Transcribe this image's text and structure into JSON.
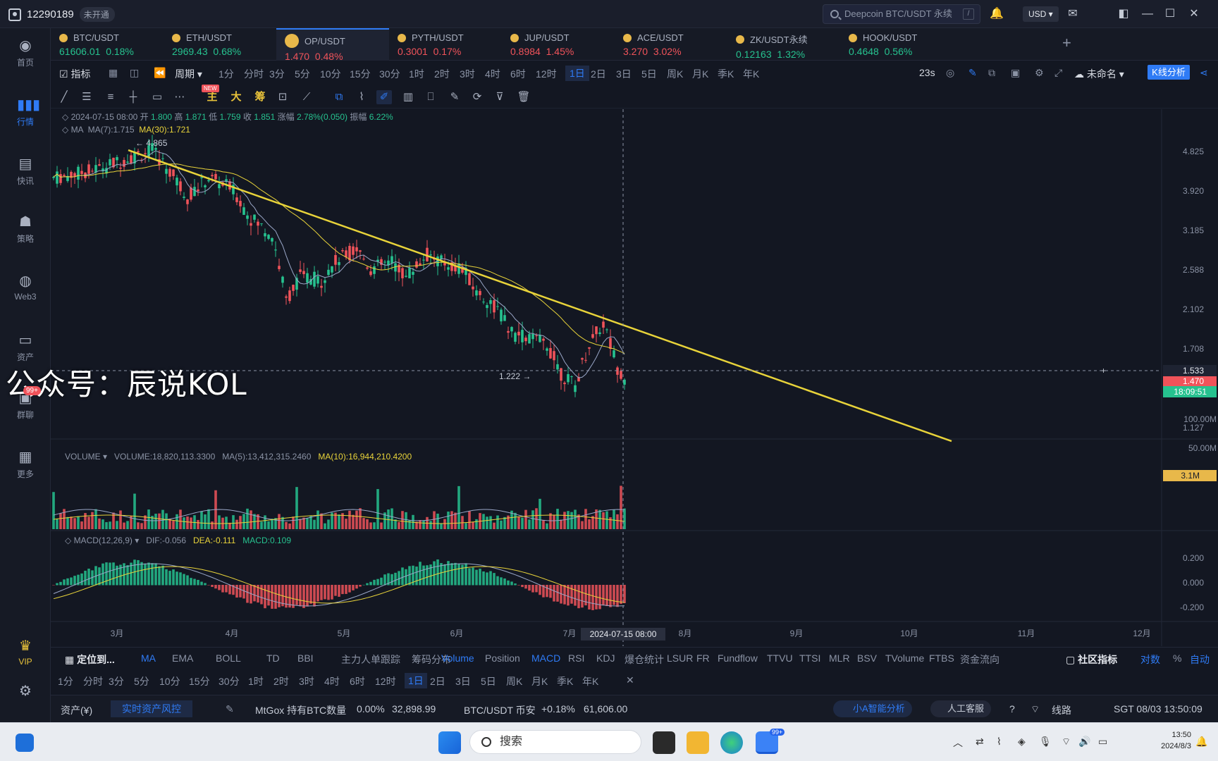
{
  "titlebar": {
    "account_id": "12290189",
    "account_status": "未开通",
    "search_placeholder": "Deepcoin BTC/USDT 永续",
    "search_shortcut": "/",
    "currency": "USD"
  },
  "sidebar": {
    "items": [
      {
        "label": "首页",
        "icon": "home-icon"
      },
      {
        "label": "行情",
        "icon": "market-icon"
      },
      {
        "label": "快讯",
        "icon": "news-icon"
      },
      {
        "label": "策略",
        "icon": "bot-icon"
      },
      {
        "label": "Web3",
        "icon": "web3-icon"
      },
      {
        "label": "资产",
        "icon": "wallet-icon"
      },
      {
        "label": "群聊",
        "icon": "chat-icon"
      },
      {
        "label": "更多",
        "icon": "more-icon"
      },
      {
        "label": "VIP",
        "icon": "vip-icon"
      }
    ],
    "chat_badge": "99+"
  },
  "tickers": [
    {
      "name": "BTC/USDT",
      "price": "61606.01",
      "change": "0.18%",
      "dir": "up"
    },
    {
      "name": "ETH/USDT",
      "price": "2969.43",
      "change": "0.68%",
      "dir": "up"
    },
    {
      "name": "OP/USDT",
      "price": "1.470",
      "change": "0.48%",
      "dir": "dn",
      "active": true
    },
    {
      "name": "PYTH/USDT",
      "price": "0.3001",
      "change": "0.17%",
      "dir": "dn"
    },
    {
      "name": "JUP/USDT",
      "price": "0.8984",
      "change": "1.45%",
      "dir": "dn"
    },
    {
      "name": "ACE/USDT",
      "price": "3.270",
      "change": "3.02%",
      "dir": "dn"
    },
    {
      "name": "ZK/USDT永续",
      "price": "0.12163",
      "change": "1.32%",
      "dir": "up"
    },
    {
      "name": "HOOK/USDT",
      "price": "0.4648",
      "change": "0.56%",
      "dir": "up"
    }
  ],
  "periodbar": {
    "indicator_label": "指标",
    "period_label": "周期",
    "periods": [
      "1分",
      "分时",
      "3分",
      "5分",
      "10分",
      "15分",
      "30分",
      "1时",
      "2时",
      "3时",
      "4时",
      "6时",
      "12时",
      "1日",
      "2日",
      "3日",
      "5日",
      "周K",
      "月K",
      "季K",
      "年K"
    ],
    "selected": "1日",
    "countdown": "23s",
    "layout_name": "未命名",
    "kline_button": "K线分析"
  },
  "drawbar": {
    "new_badge": "NEW",
    "tools_text": [
      "主",
      "大",
      "筹"
    ]
  },
  "chart_header": {
    "date": "2024-07-15 08:00",
    "open_label": "开",
    "open": "1.800",
    "high_label": "高",
    "high": "1.871",
    "low_label": "低",
    "low": "1.759",
    "close_label": "收",
    "close": "1.851",
    "change_label": "涨幅",
    "change": "2.78%(0.050)",
    "amp_label": "振幅",
    "amp": "6.22%",
    "ma_name": "MA",
    "ma7": "MA(7):1.715",
    "ma30": "MA(30):1.721"
  },
  "price_axis": {
    "ticks": [
      "4.825",
      "3.920",
      "3.185",
      "2.588",
      "2.102",
      "1.708",
      "1.127"
    ],
    "crosshair_price": "1.533",
    "last_price": "1.470",
    "countdown": "18:09:51",
    "high_marker": "4.865",
    "low_marker": "1.222"
  },
  "volume_panel": {
    "name": "VOLUME",
    "volume": "VOLUME:18,820,113.3300",
    "ma5": "MA(5):13,412,315.2460",
    "ma10": "MA(10):16,944,210.4200",
    "ticks": [
      "100.00M",
      "50.00M"
    ],
    "last": "3.1M"
  },
  "macd_panel": {
    "name": "MACD(12,26,9)",
    "dif": "DIF:-0.056",
    "dea": "DEA:-0.111",
    "macd": "MACD:0.109",
    "ticks": [
      "0.200",
      "0.000",
      "-0.200"
    ]
  },
  "time_axis": {
    "labels": [
      "3月",
      "4月",
      "5月",
      "6月",
      "7月",
      "8月",
      "9月",
      "10月",
      "11月",
      "12月"
    ],
    "crosshair_time": "2024-07-15 08:00"
  },
  "watermark": "公众号：辰说KOL",
  "indicator_tabs": {
    "locate": "定位到...",
    "main": [
      "MA",
      "EMA",
      "BOLL",
      "TD",
      "BBI",
      "主力人单跟踪",
      "筹码分布"
    ],
    "sub": [
      "Volume",
      "Position",
      "MACD",
      "RSI",
      "KDJ",
      "爆仓统计",
      "LSUR",
      "FR",
      "Fundflow",
      "TTVU",
      "TTSI",
      "MLR",
      "BSV",
      "TVolume",
      "FTBS",
      "资金流向"
    ],
    "community": "社区指标",
    "log": "对数",
    "percent": "%",
    "auto": "自动"
  },
  "period_row2": [
    "1分",
    "分时",
    "3分",
    "5分",
    "10分",
    "15分",
    "30分",
    "1时",
    "2时",
    "3时",
    "4时",
    "6时",
    "12时",
    "1日",
    "2日",
    "3日",
    "5日",
    "周K",
    "月K",
    "季K",
    "年K"
  ],
  "statusbar": {
    "assets": "资产(¥)",
    "risk_button": "实时资产风控",
    "mtgox": "MtGox 持有BTC数量",
    "mtgox_pct": "0.00%",
    "mtgox_value": "32,898.99",
    "pair": "BTC/USDT 币安",
    "pair_change": "+0.18%",
    "pair_price": "61,606.00",
    "ai_button": "小A智能分析",
    "cs_button": "人工客服",
    "line": "线路",
    "timezone_time": "SGT 08/03 13:50:09"
  },
  "taskbar": {
    "search": "搜索",
    "time": "13:50",
    "date": "2024/8/3",
    "badge": "99+"
  },
  "colors": {
    "up": "#26c28f",
    "down": "#f0535a",
    "accent": "#2f7bf5",
    "trendline": "#e8d33a"
  }
}
